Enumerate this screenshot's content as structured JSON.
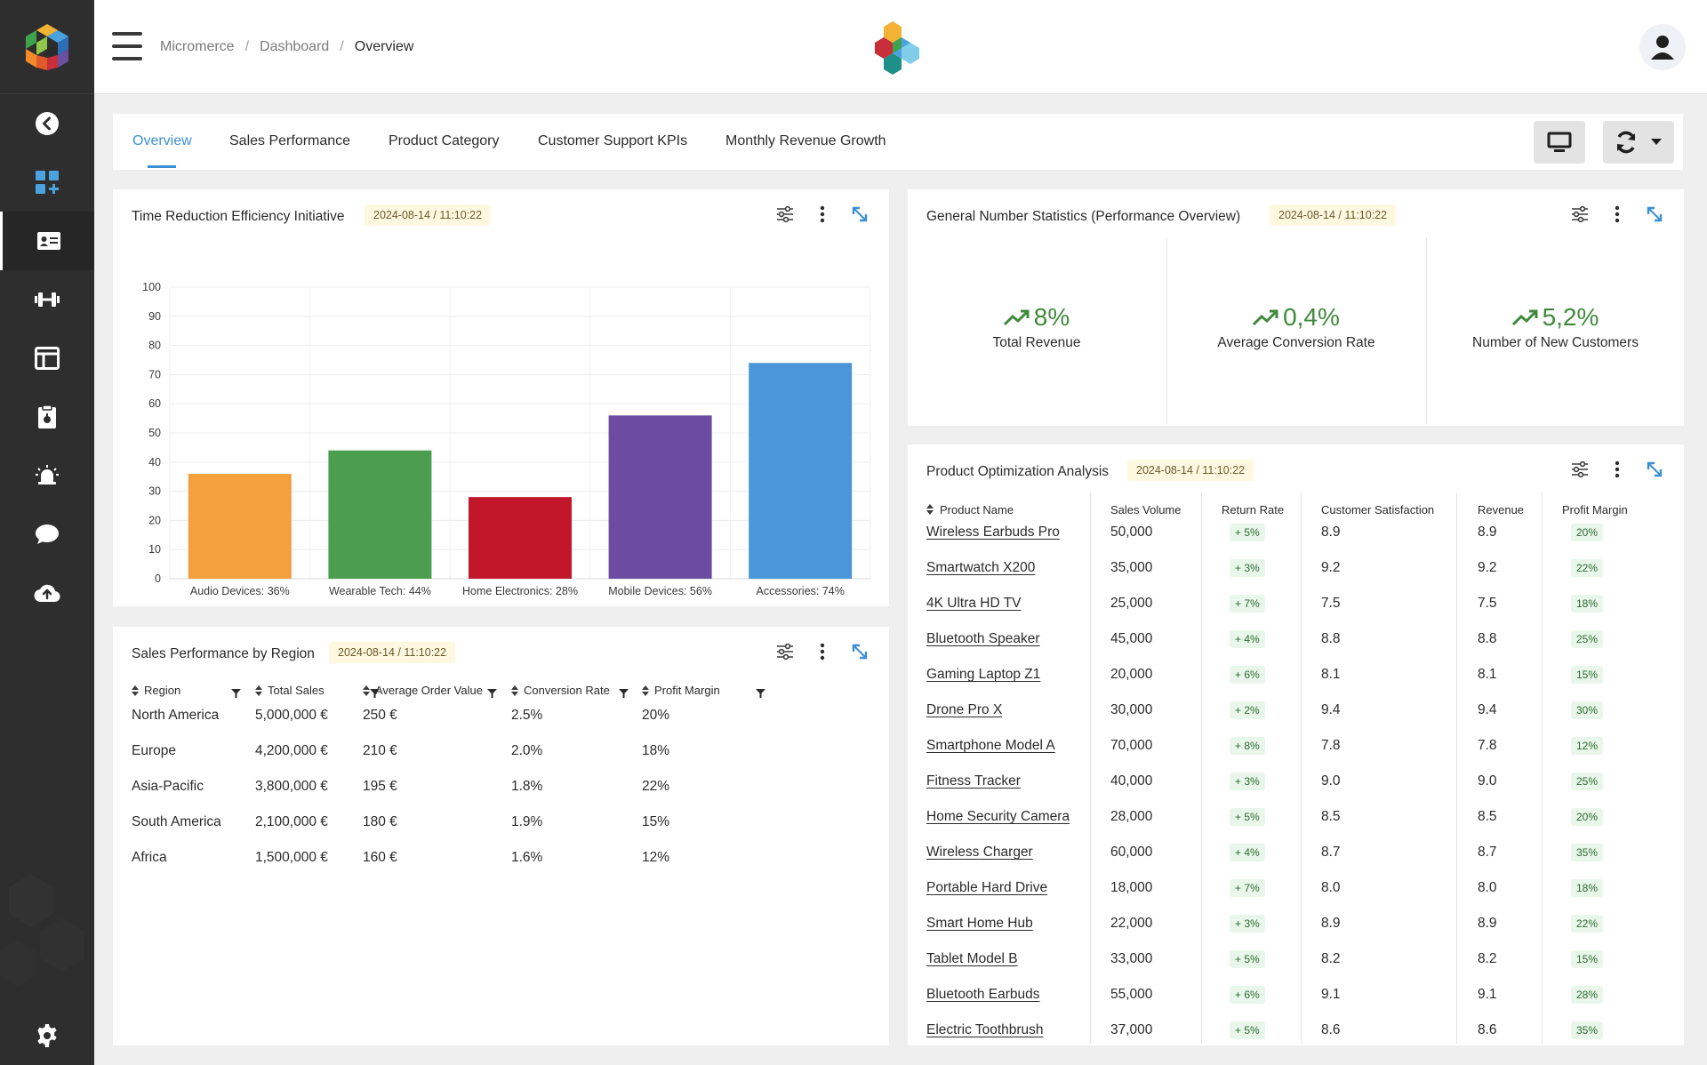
{
  "breadcrumb": [
    "Micromerce",
    "Dashboard",
    "Overview"
  ],
  "tabs": [
    {
      "label": "Overview",
      "active": true
    },
    {
      "label": "Sales Performance",
      "active": false
    },
    {
      "label": "Product Category",
      "active": false
    },
    {
      "label": "Customer Support KPIs",
      "active": false
    },
    {
      "label": "Monthly Revenue Growth",
      "active": false
    }
  ],
  "sidebar": {
    "items": [
      {
        "icon": "chevron-left-circle-icon"
      },
      {
        "icon": "dashboard-add-icon"
      },
      {
        "icon": "id-card-icon",
        "active": true
      },
      {
        "icon": "dumbbell-icon"
      },
      {
        "icon": "layout-icon"
      },
      {
        "icon": "clipboard-icon"
      },
      {
        "icon": "alarm-icon"
      },
      {
        "icon": "chat-bubble-icon"
      },
      {
        "icon": "cloud-upload-icon"
      }
    ],
    "bottom_icon": "gear-icon"
  },
  "colors": {
    "accent": "#3b8fd4",
    "positive": "#3f8a3a",
    "sidebar": "#2e2e2e"
  },
  "cards": {
    "time_reduction": {
      "title": "Time Reduction Efficiency Initiative",
      "timestamp": "2024-08-14 / 11:10:22"
    },
    "general_stats": {
      "title": "General Number Statistics (Performance Overview)",
      "timestamp": "2024-08-14 / 11:10:22"
    },
    "sales_region": {
      "title": "Sales Performance by Region",
      "timestamp": "2024-08-14 / 11:10:22"
    },
    "product_opt": {
      "title": "Product Optimization Analysis",
      "timestamp": "2024-08-14 / 11:10:22"
    }
  },
  "chart_data": {
    "type": "bar",
    "categories": [
      "Audio Devices: 36%",
      "Wearable Tech: 44%",
      "Home Electronics: 28%",
      "Mobile Devices: 56%",
      "Accessories: 74%"
    ],
    "values": [
      36,
      44,
      28,
      56,
      74
    ],
    "colors": [
      "#f4a03f",
      "#4c9e4f",
      "#c2172b",
      "#6c4ca0",
      "#4a96d8"
    ],
    "yticks": [
      0,
      10,
      20,
      30,
      40,
      50,
      60,
      70,
      80,
      90,
      100
    ],
    "ylim": [
      0,
      100
    ],
    "grid": true
  },
  "kpis": [
    {
      "value": "8%",
      "label": "Total Revenue"
    },
    {
      "value": "0,4%",
      "label": "Average Conversion Rate"
    },
    {
      "value": "5,2%",
      "label": "Number of New Customers"
    }
  ],
  "region_table": {
    "headers": [
      "Region",
      "Total Sales",
      "Average Order Value",
      "Conversion Rate",
      "Profit Margin"
    ],
    "rows": [
      [
        "North America",
        "5,000,000 €",
        "250 €",
        "2.5%",
        "20%"
      ],
      [
        "Europe",
        "4,200,000 €",
        "210 €",
        "2.0%",
        "18%"
      ],
      [
        "Asia-Pacific",
        "3,800,000 €",
        "195 €",
        "1.8%",
        "22%"
      ],
      [
        "South America",
        "2,100,000 €",
        "180 €",
        "1.9%",
        "15%"
      ],
      [
        "Africa",
        "1,500,000 €",
        "160 €",
        "1.6%",
        "12%"
      ]
    ]
  },
  "product_table": {
    "headers": [
      "Product Name",
      "Sales Volume",
      "Return Rate",
      "Customer Satisfaction",
      "Revenue",
      "Profit Margin"
    ],
    "rows": [
      [
        "Wireless Earbuds Pro",
        "50,000",
        "+ 5%",
        "8.9",
        "8.9",
        "20%"
      ],
      [
        "Smartwatch X200",
        "35,000",
        "+ 3%",
        "9.2",
        "9.2",
        "22%"
      ],
      [
        "4K Ultra HD TV",
        "25,000",
        "+ 7%",
        "7.5",
        "7.5",
        "18%"
      ],
      [
        "Bluetooth Speaker",
        "45,000",
        "+ 4%",
        "8.8",
        "8.8",
        "25%"
      ],
      [
        "Gaming Laptop Z1",
        "20,000",
        "+ 6%",
        "8.1",
        "8.1",
        "15%"
      ],
      [
        "Drone Pro X",
        "30,000",
        "+ 2%",
        "9.4",
        "9.4",
        "30%"
      ],
      [
        "Smartphone Model A",
        "70,000",
        "+ 8%",
        "7.8",
        "7.8",
        "12%"
      ],
      [
        "Fitness Tracker",
        "40,000",
        "+ 3%",
        "9.0",
        "9.0",
        "25%"
      ],
      [
        "Home Security Camera",
        "28,000",
        "+ 5%",
        "8.5",
        "8.5",
        "20%"
      ],
      [
        "Wireless Charger",
        "60,000",
        "+ 4%",
        "8.7",
        "8.7",
        "35%"
      ],
      [
        "Portable Hard Drive",
        "18,000",
        "+ 7%",
        "8.0",
        "8.0",
        "18%"
      ],
      [
        "Smart Home Hub",
        "22,000",
        "+ 3%",
        "8.9",
        "8.9",
        "22%"
      ],
      [
        "Tablet Model B",
        "33,000",
        "+ 5%",
        "8.2",
        "8.2",
        "15%"
      ],
      [
        "Bluetooth Earbuds",
        "55,000",
        "+ 6%",
        "9.1",
        "9.1",
        "28%"
      ],
      [
        "Electric Toothbrush",
        "37,000",
        "+ 5%",
        "8.6",
        "8.6",
        "35%"
      ]
    ]
  }
}
